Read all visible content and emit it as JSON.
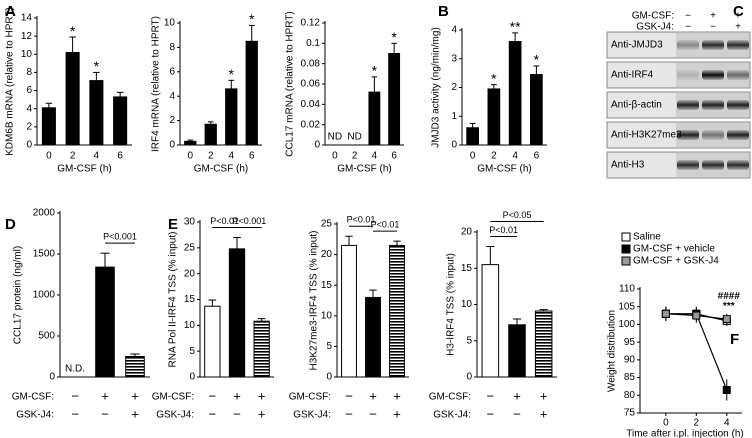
{
  "chart_data": [
    {
      "type": "bar",
      "panel": "A",
      "ylabel": "KDM6B mRNA (relative to HPRT)",
      "xlabel": "GM-CSF (h)",
      "categories": [
        "0",
        "2",
        "4",
        "6"
      ],
      "values": [
        4.1,
        10.2,
        7.1,
        5.3
      ],
      "errors": [
        0.5,
        1.7,
        0.9,
        0.5
      ],
      "significance": [
        null,
        "*",
        "*",
        null
      ],
      "color": "#000000",
      "ylim": [
        0,
        14
      ],
      "yticks": [
        0,
        2,
        4,
        6,
        8,
        10,
        12,
        14
      ]
    },
    {
      "type": "bar",
      "ylabel": "IRF4 mRNA (relative to HPRT)",
      "xlabel": "GM-CSF (h)",
      "categories": [
        "0",
        "2",
        "4",
        "6"
      ],
      "values": [
        0.3,
        1.7,
        4.6,
        8.5
      ],
      "errors": [
        0.1,
        0.2,
        0.7,
        1.3
      ],
      "significance": [
        null,
        null,
        "*",
        "*"
      ],
      "color": "#000000",
      "ylim": [
        0,
        10
      ],
      "yticks": [
        0,
        2,
        4,
        6,
        8,
        10
      ]
    },
    {
      "type": "bar",
      "ylabel": "CCL17 mRNA (relative to HPRT)",
      "xlabel": "GM-CSF (h)",
      "categories": [
        "0",
        "2",
        "4",
        "6"
      ],
      "values": [
        null,
        null,
        0.052,
        0.09
      ],
      "value_labels": [
        "ND",
        "ND",
        null,
        null
      ],
      "errors": [
        null,
        null,
        0.015,
        0.01
      ],
      "significance": [
        null,
        null,
        "*",
        "*"
      ],
      "color": "#000000",
      "ylim": [
        0,
        0.12
      ],
      "yticks": [
        0,
        0.02,
        0.04,
        0.06,
        0.08,
        0.1,
        0.12
      ]
    },
    {
      "type": "bar",
      "panel": "B",
      "ylabel": "JMJD3 activity (ng/min/mg)",
      "xlabel": "GM-CSF (h)",
      "categories": [
        "0",
        "2",
        "4",
        "6"
      ],
      "values": [
        0.6,
        1.95,
        3.6,
        2.45
      ],
      "errors": [
        0.15,
        0.15,
        0.3,
        0.3
      ],
      "significance": [
        null,
        "*",
        "**",
        "*"
      ],
      "color": "#000000",
      "ylim": [
        0,
        4
      ],
      "yticks": [
        0,
        1,
        2,
        3,
        4
      ]
    },
    {
      "type": "bar",
      "panel": "D",
      "ylabel": "CCL17 protein (ng/ml)",
      "conditions": [
        {
          "label": "GM-CSF:",
          "values": [
            "−",
            "+",
            "+"
          ]
        },
        {
          "label": "GSK-J4:",
          "values": [
            "−",
            "−",
            "+"
          ]
        }
      ],
      "values": [
        null,
        1340,
        250
      ],
      "value_labels": [
        "N.D.",
        null,
        null
      ],
      "errors": [
        null,
        170,
        30
      ],
      "fills": [
        "white",
        "black",
        "striped"
      ],
      "comparisons": [
        {
          "from": 1,
          "to": 2,
          "label": "P<0.001"
        }
      ],
      "ylim": [
        0,
        2000
      ],
      "yticks": [
        0,
        500,
        1000,
        1500,
        2000
      ]
    },
    {
      "type": "bar",
      "panel": "E",
      "ylabel": "RNA Pol II-IRF4 TSS (% input)",
      "conditions": [
        {
          "label": "GM-CSF:",
          "values": [
            "−",
            "+",
            "+"
          ]
        },
        {
          "label": "GSK-J4:",
          "values": [
            "−",
            "−",
            "+"
          ]
        }
      ],
      "values": [
        13.7,
        24.8,
        10.8
      ],
      "errors": [
        1.2,
        2.2,
        0.5
      ],
      "fills": [
        "white",
        "black",
        "striped"
      ],
      "comparisons": [
        {
          "from": 0,
          "to": 1,
          "label": "P<0.01"
        },
        {
          "from": 1,
          "to": 2,
          "label": "P<0.001"
        }
      ],
      "ylim": [
        0,
        30
      ],
      "yticks": [
        0,
        5,
        10,
        15,
        20,
        25,
        30
      ]
    },
    {
      "type": "bar",
      "ylabel": "H3K27me3-IRF4 TSS (% input)",
      "conditions": [
        {
          "label": "GM-CSF:",
          "values": [
            "−",
            "+",
            "+"
          ]
        },
        {
          "label": "GSK-J4:",
          "values": [
            "−",
            "−",
            "+"
          ]
        }
      ],
      "values": [
        21.5,
        13,
        21.5
      ],
      "errors": [
        1.5,
        1.2,
        0.7
      ],
      "fills": [
        "white",
        "black",
        "striped"
      ],
      "comparisons": [
        {
          "from": 0,
          "to": 1,
          "label": "P<0.01"
        },
        {
          "from": 1,
          "to": 2,
          "label": "P<0.01"
        }
      ],
      "ylim": [
        0,
        25
      ],
      "yticks": [
        0,
        5,
        10,
        15,
        20,
        25
      ]
    },
    {
      "type": "bar",
      "ylabel": "H3-IRF4 TSS (% input)",
      "conditions": [
        {
          "label": "GM-CSF:",
          "values": [
            "−",
            "+",
            "+"
          ]
        },
        {
          "label": "GSK-J4:",
          "values": [
            "−",
            "−",
            "+"
          ]
        }
      ],
      "values": [
        15.5,
        7.2,
        9.1
      ],
      "errors": [
        2.5,
        0.8,
        0.2
      ],
      "fills": [
        "white",
        "black",
        "striped"
      ],
      "comparisons": [
        {
          "from": 0,
          "to": 1,
          "label": "P<0.01"
        },
        {
          "from": 0,
          "to": 2,
          "label": "P<0.05"
        }
      ],
      "ylim": [
        0,
        20
      ],
      "yticks": [
        0,
        5,
        10,
        15,
        20
      ]
    },
    {
      "type": "line",
      "panel": "F",
      "ylabel": "Weight distribution",
      "xlabel": "Time after i.pl. injection (h)",
      "x": [
        0,
        2,
        4
      ],
      "xlim": [
        -1.7,
        5
      ],
      "xticks": [
        0,
        2,
        4
      ],
      "ylim": [
        75,
        110
      ],
      "yticks": [
        75,
        80,
        85,
        90,
        95,
        100,
        105,
        110
      ],
      "legend": "top",
      "series": [
        {
          "name": "Saline",
          "color": "#ffffff",
          "values": [
            103,
            103,
            101
          ],
          "errors": [
            2,
            2,
            1.5
          ]
        },
        {
          "name": "GM-CSF + vehicle",
          "color": "#000000",
          "values": [
            103,
            103,
            81.5
          ],
          "errors": [
            2,
            1.5,
            3
          ]
        },
        {
          "name": "GM-CSF + GSK-J4",
          "color": "#999999",
          "values": [
            103,
            102.5,
            101.5
          ],
          "errors": [
            2,
            2,
            1.5
          ]
        }
      ],
      "annotations": [
        "####",
        "***"
      ]
    }
  ],
  "blot": {
    "panel": "C",
    "conditions": [
      {
        "label": "GM-CSF:",
        "values": [
          "−",
          "+",
          "+"
        ]
      },
      {
        "label": "GSK-J4:",
        "values": [
          "−",
          "−",
          "+"
        ]
      }
    ],
    "bands": [
      "Anti-JMJD3",
      "Anti-IRF4",
      "Anti-β-actin",
      "Anti-H3K27me3",
      "Anti-H3"
    ]
  }
}
